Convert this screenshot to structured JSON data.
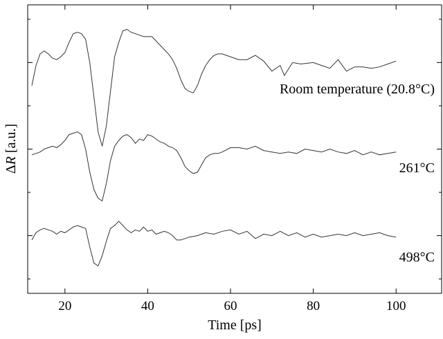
{
  "chart_data": {
    "type": "line",
    "xlabel": "Time [ps]",
    "ylabel_symbol": "Δ",
    "ylabel_var": "R",
    "ylabel_unit": " [a.u.]",
    "xlim": [
      11,
      111
    ],
    "ylim": [
      0,
      10
    ],
    "xticks": [
      20,
      40,
      60,
      80,
      100
    ],
    "yticks_major": [
      8,
      5,
      2
    ],
    "yticks_minor": [
      9.5,
      6.5,
      3.5,
      0.5
    ],
    "legend": "none",
    "grid": false,
    "annotations": [
      {
        "text": "Room temperature (20.8°C)",
        "series": 0
      },
      {
        "text": "261°C",
        "series": 1
      },
      {
        "text": "498°C",
        "series": 2
      }
    ],
    "series": [
      {
        "x": [
          12,
          13,
          14,
          15,
          16,
          17,
          18,
          19,
          20,
          21,
          22,
          23,
          24,
          25,
          26,
          27,
          28,
          29,
          30,
          31,
          32,
          33,
          34,
          35,
          36,
          37,
          38,
          39,
          40,
          41,
          42,
          43,
          44,
          45,
          46,
          47,
          48,
          49,
          50,
          51,
          52,
          53,
          54,
          55,
          56,
          57,
          58,
          59,
          60,
          62,
          64,
          66,
          68,
          70,
          72,
          73,
          75,
          77,
          80,
          82,
          84,
          86,
          88,
          90,
          92,
          94,
          96,
          98,
          100
        ],
        "y": [
          7.2,
          7.9,
          8.3,
          8.4,
          8.3,
          8.15,
          8.1,
          8.2,
          8.35,
          8.7,
          9.0,
          9.05,
          9.0,
          8.8,
          8.0,
          6.8,
          5.6,
          5.1,
          5.8,
          7.0,
          8.2,
          8.7,
          9.1,
          9.15,
          9.05,
          9.0,
          8.95,
          8.9,
          8.9,
          8.9,
          8.75,
          8.6,
          8.45,
          8.3,
          8.1,
          7.8,
          7.4,
          7.1,
          7.0,
          6.95,
          7.2,
          7.6,
          7.9,
          8.1,
          8.25,
          8.3,
          8.3,
          8.25,
          8.2,
          8.1,
          8.1,
          8.25,
          8.05,
          7.7,
          7.9,
          7.55,
          8.0,
          7.95,
          8.0,
          7.9,
          7.8,
          8.1,
          7.7,
          7.85,
          7.85,
          7.8,
          7.85,
          7.95,
          8.05
        ]
      },
      {
        "x": [
          12,
          13,
          14,
          15,
          16,
          17,
          18,
          19,
          20,
          21,
          22,
          23,
          24,
          25,
          26,
          27,
          28,
          29,
          30,
          31,
          32,
          33,
          34,
          35,
          36,
          37,
          38,
          39,
          40,
          41,
          42,
          43,
          44,
          45,
          46,
          47,
          48,
          49,
          50,
          51,
          52,
          53,
          54,
          55,
          56,
          57,
          58,
          60,
          62,
          64,
          66,
          68,
          70,
          72,
          74,
          76,
          78,
          80,
          82,
          84,
          86,
          88,
          90,
          92,
          94,
          96,
          98,
          100
        ],
        "y": [
          4.8,
          4.85,
          4.9,
          5.0,
          5.05,
          5.1,
          5.05,
          5.15,
          5.3,
          5.5,
          5.55,
          5.6,
          5.5,
          5.0,
          4.2,
          3.6,
          3.3,
          3.2,
          3.8,
          4.6,
          5.1,
          5.3,
          5.45,
          5.5,
          5.4,
          5.2,
          5.35,
          5.3,
          5.5,
          5.45,
          5.35,
          5.25,
          5.2,
          5.1,
          5.05,
          4.95,
          4.7,
          4.4,
          4.25,
          4.15,
          4.2,
          4.45,
          4.7,
          4.8,
          4.85,
          4.85,
          4.9,
          5.05,
          5.05,
          5.0,
          5.1,
          4.95,
          4.9,
          4.85,
          4.9,
          4.85,
          5.0,
          4.95,
          4.9,
          5.0,
          4.9,
          4.85,
          4.95,
          4.8,
          4.9,
          4.8,
          4.85,
          4.9
        ]
      },
      {
        "x": [
          12,
          13,
          14,
          15,
          16,
          17,
          18,
          19,
          20,
          21,
          22,
          23,
          24,
          25,
          26,
          27,
          28,
          29,
          30,
          31,
          32,
          33,
          34,
          35,
          36,
          37,
          38,
          39,
          40,
          41,
          42,
          43,
          44,
          45,
          46,
          47,
          48,
          49,
          50,
          52,
          54,
          56,
          58,
          60,
          62,
          64,
          66,
          68,
          70,
          72,
          74,
          76,
          78,
          80,
          82,
          84,
          86,
          88,
          90,
          92,
          94,
          96,
          98,
          100
        ],
        "y": [
          1.85,
          2.1,
          2.2,
          2.25,
          2.2,
          2.15,
          2.05,
          2.15,
          2.1,
          2.2,
          2.3,
          2.35,
          2.3,
          2.25,
          1.6,
          1.05,
          0.95,
          1.3,
          1.8,
          2.25,
          2.35,
          2.5,
          2.35,
          2.2,
          2.1,
          2.2,
          2.15,
          2.3,
          2.15,
          2.2,
          2.05,
          2.1,
          2.15,
          2.1,
          2.0,
          1.85,
          1.85,
          1.9,
          1.95,
          2.0,
          2.1,
          2.05,
          2.15,
          2.2,
          2.05,
          2.15,
          1.9,
          2.05,
          2.0,
          2.15,
          2.0,
          2.1,
          1.95,
          2.05,
          1.95,
          2.0,
          2.05,
          2.0,
          2.1,
          2.0,
          2.05,
          2.1,
          2.0,
          1.95
        ]
      }
    ]
  }
}
